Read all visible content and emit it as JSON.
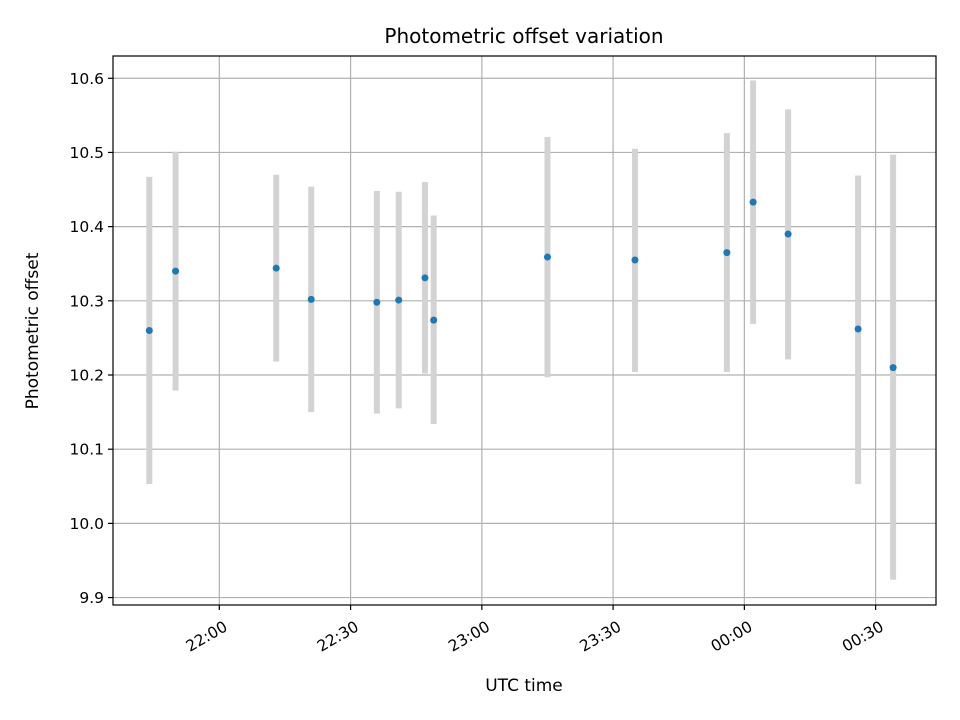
{
  "chart_data": {
    "type": "scatter",
    "title": "Photometric offset variation",
    "xlabel": "UTC time",
    "ylabel": "Photometric offset",
    "x_tick_labels": [
      "22:00",
      "22:30",
      "23:00",
      "23:30",
      "00:00",
      "00:30"
    ],
    "x_tick_minutes": [
      1320,
      1350,
      1380,
      1410,
      1440,
      1470
    ],
    "y_ticks": [
      9.9,
      10.0,
      10.1,
      10.2,
      10.3,
      10.4,
      10.5,
      10.6
    ],
    "y_tick_labels": [
      "9.9",
      "10.0",
      "10.1",
      "10.2",
      "10.3",
      "10.4",
      "10.5",
      "10.6"
    ],
    "xlim_minutes": [
      1295.7,
      1483.8
    ],
    "ylim": [
      9.89,
      10.63
    ],
    "grid": true,
    "point_color": "#1f77b4",
    "errorbar_color": "#d3d3d3",
    "points": [
      {
        "time": "21:44",
        "y": 10.26,
        "ylo": 10.053,
        "yhi": 10.467
      },
      {
        "time": "21:50",
        "y": 10.34,
        "ylo": 10.179,
        "yhi": 10.501
      },
      {
        "time": "22:13",
        "y": 10.344,
        "ylo": 10.218,
        "yhi": 10.47
      },
      {
        "time": "22:21",
        "y": 10.302,
        "ylo": 10.15,
        "yhi": 10.454
      },
      {
        "time": "22:36",
        "y": 10.298,
        "ylo": 10.148,
        "yhi": 10.448
      },
      {
        "time": "22:41",
        "y": 10.301,
        "ylo": 10.155,
        "yhi": 10.447
      },
      {
        "time": "22:47",
        "y": 10.331,
        "ylo": 10.202,
        "yhi": 10.46
      },
      {
        "time": "22:49",
        "y": 10.274,
        "ylo": 10.134,
        "yhi": 10.415
      },
      {
        "time": "23:15",
        "y": 10.359,
        "ylo": 10.197,
        "yhi": 10.521
      },
      {
        "time": "23:35",
        "y": 10.355,
        "ylo": 10.204,
        "yhi": 10.505
      },
      {
        "time": "23:56",
        "y": 10.365,
        "ylo": 10.204,
        "yhi": 10.526
      },
      {
        "time": "00:02",
        "y": 10.433,
        "ylo": 10.269,
        "yhi": 10.597
      },
      {
        "time": "00:10",
        "y": 10.39,
        "ylo": 10.221,
        "yhi": 10.558
      },
      {
        "time": "00:26",
        "y": 10.262,
        "ylo": 10.053,
        "yhi": 10.469
      },
      {
        "time": "00:34",
        "y": 10.21,
        "ylo": 9.924,
        "yhi": 10.497
      }
    ]
  }
}
